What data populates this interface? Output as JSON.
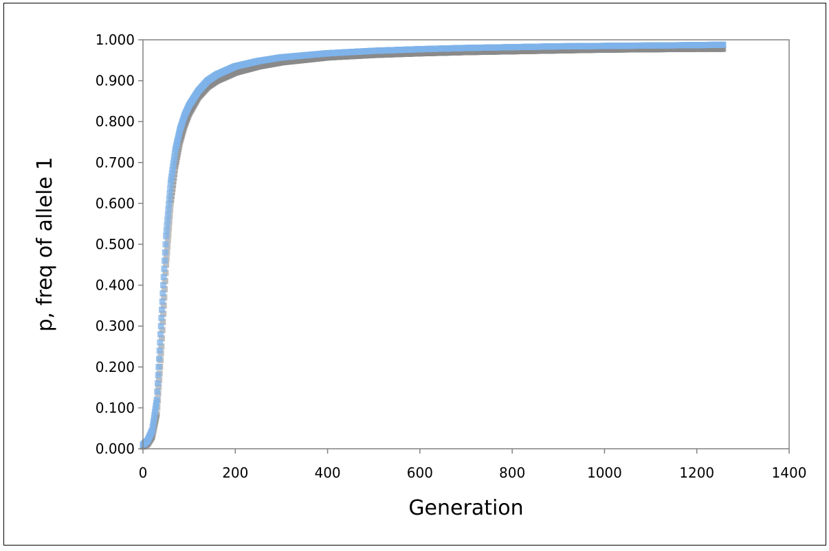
{
  "chart_data": {
    "type": "scatter",
    "title": "",
    "xlabel": "Generation",
    "ylabel": "p, freq of allele 1",
    "xlim": [
      0,
      1400
    ],
    "ylim": [
      0,
      1
    ],
    "x_ticks": [
      "0",
      "200",
      "400",
      "600",
      "800",
      "1000",
      "1200",
      "1400"
    ],
    "y_ticks": [
      "0.000",
      "0.100",
      "0.200",
      "0.300",
      "0.400",
      "0.500",
      "0.600",
      "0.700",
      "0.800",
      "0.900",
      "1.000"
    ],
    "grid": false,
    "legend": "none",
    "series": [
      {
        "color": "#8a8a8a",
        "marker": "square",
        "points": [
          [
            0,
            0.005
          ],
          [
            10,
            0.012
          ],
          [
            20,
            0.03
          ],
          [
            30,
            0.085
          ],
          [
            40,
            0.25
          ],
          [
            50,
            0.45
          ],
          [
            60,
            0.6
          ],
          [
            70,
            0.69
          ],
          [
            80,
            0.75
          ],
          [
            90,
            0.79
          ],
          [
            100,
            0.82
          ],
          [
            120,
            0.86
          ],
          [
            140,
            0.885
          ],
          [
            160,
            0.9
          ],
          [
            180,
            0.91
          ],
          [
            200,
            0.92
          ],
          [
            250,
            0.935
          ],
          [
            300,
            0.945
          ],
          [
            400,
            0.957
          ],
          [
            500,
            0.963
          ],
          [
            600,
            0.967
          ],
          [
            700,
            0.97
          ],
          [
            800,
            0.972
          ],
          [
            900,
            0.974
          ],
          [
            1000,
            0.976
          ],
          [
            1100,
            0.977
          ],
          [
            1200,
            0.978
          ],
          [
            1257,
            0.978
          ]
        ]
      },
      {
        "color": "#7fb3ea",
        "marker": "square",
        "points": [
          [
            0,
            0.01
          ],
          [
            10,
            0.02
          ],
          [
            20,
            0.045
          ],
          [
            30,
            0.12
          ],
          [
            40,
            0.32
          ],
          [
            50,
            0.52
          ],
          [
            60,
            0.65
          ],
          [
            70,
            0.73
          ],
          [
            80,
            0.78
          ],
          [
            90,
            0.815
          ],
          [
            100,
            0.84
          ],
          [
            120,
            0.875
          ],
          [
            140,
            0.9
          ],
          [
            160,
            0.915
          ],
          [
            180,
            0.925
          ],
          [
            200,
            0.935
          ],
          [
            250,
            0.948
          ],
          [
            300,
            0.957
          ],
          [
            400,
            0.967
          ],
          [
            500,
            0.973
          ],
          [
            600,
            0.977
          ],
          [
            700,
            0.98
          ],
          [
            800,
            0.982
          ],
          [
            900,
            0.984
          ],
          [
            1000,
            0.985
          ],
          [
            1100,
            0.986
          ],
          [
            1200,
            0.987
          ],
          [
            1257,
            0.988
          ]
        ]
      }
    ]
  }
}
